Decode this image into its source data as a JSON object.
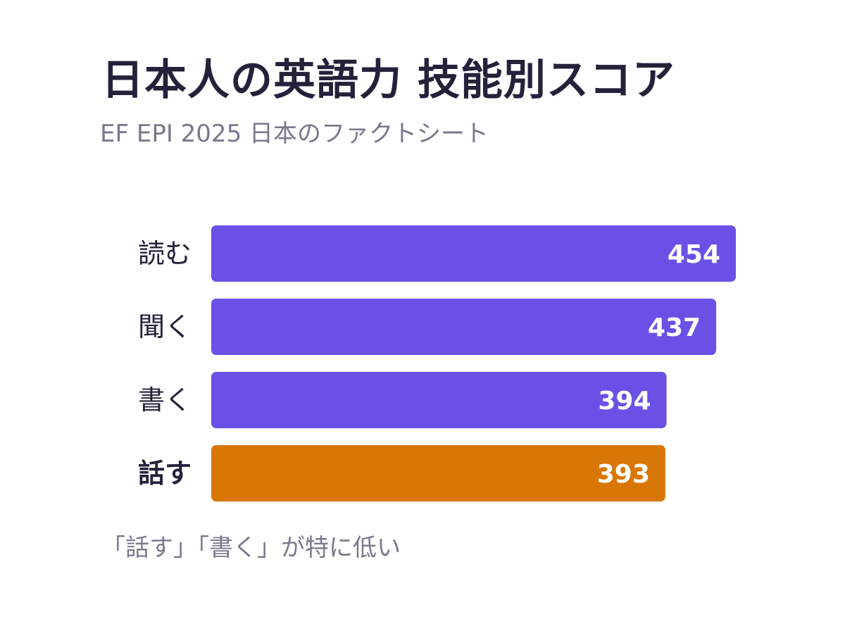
{
  "title": "日本人の英語力 技能別スコア",
  "subtitle": "EF EPI 2025 日本のファクトシート",
  "note": "「話す」「書く」が特に低い",
  "colors": {
    "default_bar": "#6b50e6",
    "highlight_bar": "#d97706",
    "text_dark": "#23223a",
    "text_muted": "#7a788c",
    "value_text": "#ffffff"
  },
  "chart_data": {
    "type": "bar",
    "orientation": "horizontal",
    "categories": [
      "読む",
      "聞く",
      "書く",
      "話す"
    ],
    "values": [
      454,
      437,
      394,
      393
    ],
    "highlight": [
      "話す"
    ],
    "data_labels": [
      "454",
      "437",
      "394",
      "393"
    ],
    "xlim": [
      0,
      454
    ],
    "grid": false,
    "legend": "none"
  }
}
